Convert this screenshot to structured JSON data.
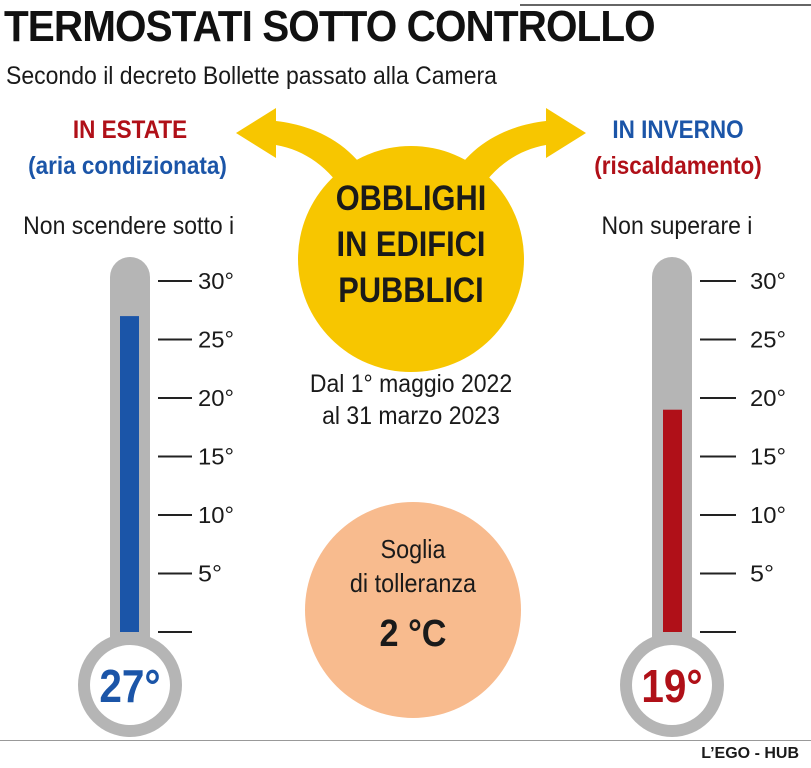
{
  "title": "TERMOSTATI SOTTO CONTROLLO",
  "subtitle": "Secondo il decreto Bollette passato alla Camera",
  "summer": {
    "heading": "IN ESTATE",
    "subheading": "(aria condizionata)",
    "rule": "Non scendere sotto i",
    "value": "27°",
    "temp": 27,
    "fill_color": "#1b55a8"
  },
  "winter": {
    "heading": "IN INVERNO",
    "subheading": "(riscaldamento)",
    "rule": "Non superare i",
    "value": "19°",
    "temp": 19,
    "fill_color": "#b01018"
  },
  "scale": {
    "ticks": [
      0,
      5,
      10,
      15,
      20,
      25,
      30
    ],
    "labels": [
      "",
      "5°",
      "10°",
      "15°",
      "20°",
      "25°",
      "30°"
    ]
  },
  "center": {
    "title_lines": [
      "OBBLIGHI",
      "IN EDIFICI",
      "PUBBLICI"
    ],
    "dates_lines": [
      "Dal 1° maggio 2022",
      "al 31 marzo 2023"
    ]
  },
  "tolerance": {
    "label_lines": [
      "Soglia",
      "di tolleranza"
    ],
    "value": "2 °C"
  },
  "colors": {
    "yellow": "#f7c600",
    "orange": "#f8bb8e",
    "thermometer_gray": "#b5b5b5"
  },
  "footer": "L’EGO - HUB"
}
